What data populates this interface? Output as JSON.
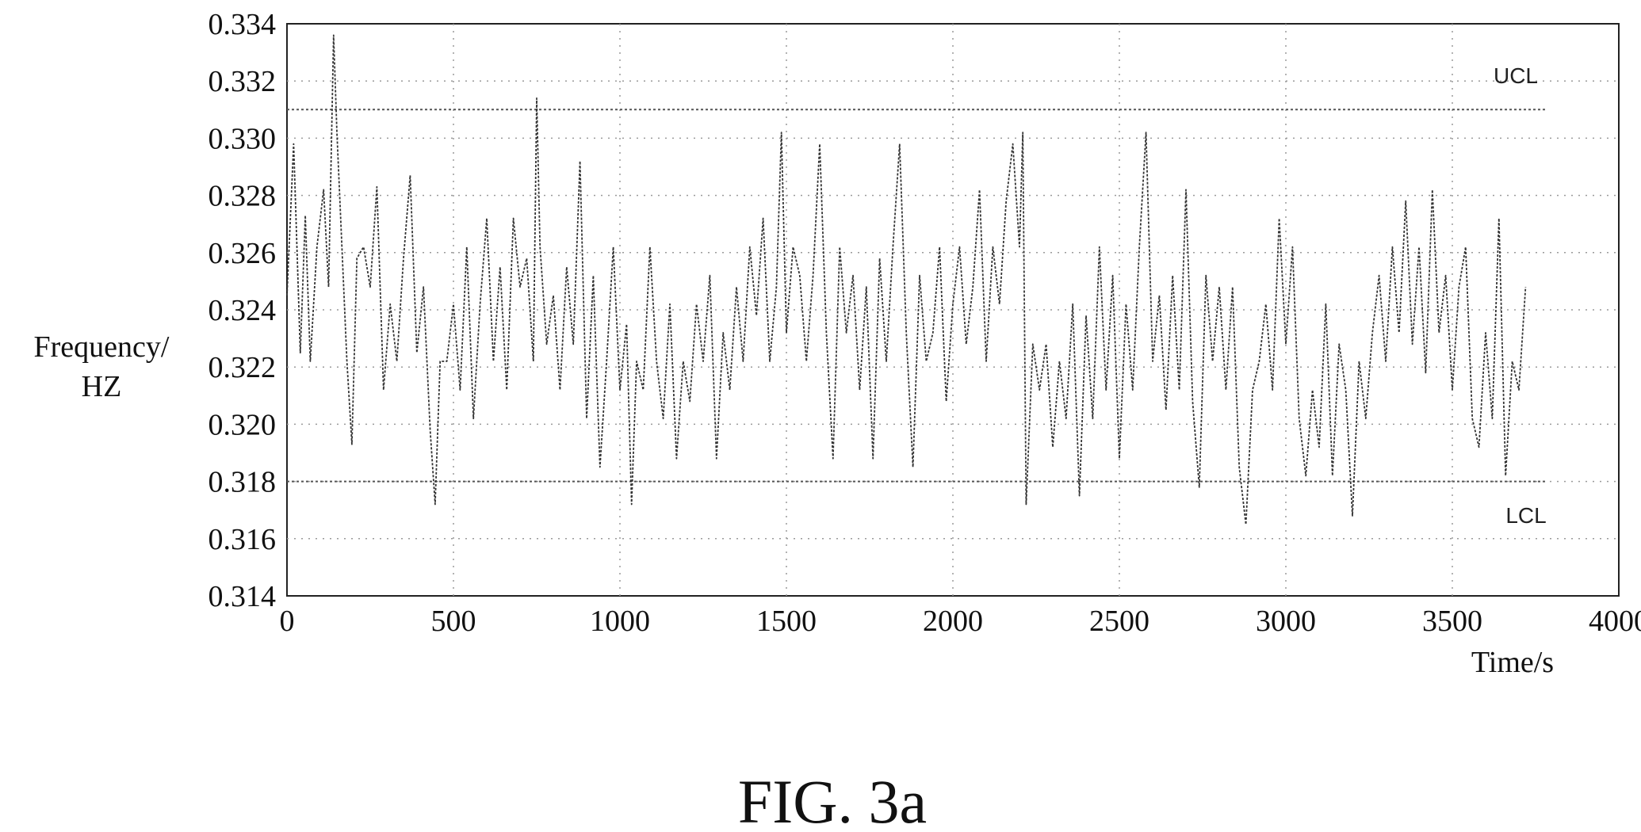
{
  "chart_data": {
    "type": "line",
    "title": "",
    "xlabel": "Time/s",
    "ylabel": "Frequency/\nHZ",
    "ylabel_lines": [
      "Frequency/",
      "HZ"
    ],
    "xlim": [
      0,
      4000
    ],
    "ylim": [
      0.314,
      0.334
    ],
    "x_ticks": [
      0,
      500,
      1000,
      1500,
      2000,
      2500,
      3000,
      3500,
      4000
    ],
    "x_tick_labels": [
      "0",
      "500",
      "1000",
      "1500",
      "2000",
      "2500",
      "3000",
      "3500",
      "4000"
    ],
    "y_ticks": [
      0.314,
      0.316,
      0.318,
      0.32,
      0.322,
      0.324,
      0.326,
      0.328,
      0.33,
      0.332,
      0.334
    ],
    "y_tick_labels": [
      "0.314",
      "0.316",
      "0.318",
      "0.320",
      "0.322",
      "0.324",
      "0.326",
      "0.328",
      "0.330",
      "0.332",
      "0.334"
    ],
    "grid": true,
    "control_limits": [
      {
        "label": "UCL",
        "value": 0.331,
        "x_end": 3780
      },
      {
        "label": "LCL",
        "value": 0.318,
        "x_end": 3780
      }
    ],
    "series": [
      {
        "x": [
          0,
          20,
          40,
          55,
          70,
          90,
          110,
          125,
          140,
          150,
          165,
          180,
          195,
          210,
          230,
          250,
          270,
          290,
          310,
          330,
          350,
          370,
          390,
          410,
          430,
          445,
          460,
          480,
          500,
          520,
          540,
          560,
          580,
          600,
          620,
          640,
          660,
          680,
          700,
          720,
          740,
          750,
          760,
          780,
          800,
          820,
          840,
          860,
          880,
          900,
          920,
          940,
          960,
          980,
          1000,
          1020,
          1035,
          1050,
          1070,
          1090,
          1110,
          1130,
          1150,
          1170,
          1190,
          1210,
          1230,
          1250,
          1270,
          1290,
          1310,
          1330,
          1350,
          1370,
          1390,
          1410,
          1430,
          1450,
          1470,
          1485,
          1500,
          1520,
          1540,
          1560,
          1580,
          1600,
          1620,
          1640,
          1660,
          1680,
          1700,
          1720,
          1740,
          1760,
          1780,
          1800,
          1820,
          1840,
          1860,
          1880,
          1900,
          1920,
          1940,
          1960,
          1980,
          2000,
          2020,
          2040,
          2060,
          2080,
          2100,
          2120,
          2140,
          2160,
          2180,
          2200,
          2210,
          2220,
          2240,
          2260,
          2280,
          2300,
          2320,
          2340,
          2360,
          2380,
          2400,
          2420,
          2440,
          2460,
          2480,
          2500,
          2520,
          2540,
          2560,
          2580,
          2600,
          2620,
          2640,
          2660,
          2680,
          2700,
          2720,
          2740,
          2760,
          2780,
          2800,
          2820,
          2840,
          2860,
          2880,
          2900,
          2920,
          2940,
          2960,
          2980,
          3000,
          3020,
          3040,
          3060,
          3080,
          3100,
          3120,
          3140,
          3160,
          3180,
          3200,
          3220,
          3240,
          3260,
          3280,
          3300,
          3320,
          3340,
          3360,
          3380,
          3400,
          3420,
          3440,
          3460,
          3480,
          3500,
          3520,
          3540,
          3560,
          3580,
          3600,
          3620,
          3640,
          3660,
          3680,
          3700,
          3720
        ],
        "y": [
          0.3245,
          0.3298,
          0.3225,
          0.3273,
          0.3222,
          0.3262,
          0.3282,
          0.3248,
          0.3336,
          0.3302,
          0.3262,
          0.3222,
          0.3193,
          0.3258,
          0.3262,
          0.3248,
          0.3283,
          0.3212,
          0.3242,
          0.3222,
          0.3258,
          0.3287,
          0.3225,
          0.3248,
          0.3198,
          0.3172,
          0.3222,
          0.3222,
          0.3242,
          0.3212,
          0.3262,
          0.3202,
          0.3242,
          0.3272,
          0.3222,
          0.3255,
          0.3212,
          0.3272,
          0.3248,
          0.3258,
          0.3222,
          0.3314,
          0.3262,
          0.3228,
          0.3245,
          0.3212,
          0.3255,
          0.3228,
          0.3292,
          0.3202,
          0.3252,
          0.3185,
          0.3222,
          0.3262,
          0.3212,
          0.3235,
          0.3172,
          0.3222,
          0.3212,
          0.3262,
          0.3222,
          0.3202,
          0.3242,
          0.3188,
          0.3222,
          0.3208,
          0.3242,
          0.3222,
          0.3252,
          0.3188,
          0.3232,
          0.3212,
          0.3248,
          0.3222,
          0.3262,
          0.3238,
          0.3272,
          0.3222,
          0.3248,
          0.3302,
          0.3232,
          0.3262,
          0.3252,
          0.3222,
          0.3252,
          0.3298,
          0.3232,
          0.3188,
          0.3262,
          0.3232,
          0.3252,
          0.3212,
          0.3248,
          0.3188,
          0.3258,
          0.3222,
          0.3262,
          0.3298,
          0.3232,
          0.3185,
          0.3252,
          0.3222,
          0.3232,
          0.3262,
          0.3208,
          0.3242,
          0.3262,
          0.3228,
          0.3248,
          0.3282,
          0.3222,
          0.3262,
          0.3242,
          0.3278,
          0.3298,
          0.3262,
          0.3302,
          0.3172,
          0.3228,
          0.3212,
          0.3228,
          0.3192,
          0.3222,
          0.3202,
          0.3242,
          0.3175,
          0.3238,
          0.3202,
          0.3262,
          0.3212,
          0.3252,
          0.3188,
          0.3242,
          0.3212,
          0.3262,
          0.3302,
          0.3222,
          0.3245,
          0.3205,
          0.3252,
          0.3212,
          0.3282,
          0.3208,
          0.3178,
          0.3252,
          0.3222,
          0.3248,
          0.3212,
          0.3248,
          0.3185,
          0.3165,
          0.3212,
          0.3222,
          0.3242,
          0.3212,
          0.3272,
          0.3228,
          0.3262,
          0.3202,
          0.3182,
          0.3212,
          0.3192,
          0.3242,
          0.3182,
          0.3228,
          0.3212,
          0.3168,
          0.3222,
          0.3202,
          0.3232,
          0.3252,
          0.3222,
          0.3262,
          0.3232,
          0.3278,
          0.3228,
          0.3262,
          0.3218,
          0.3282,
          0.3232,
          0.3252,
          0.3212,
          0.3248,
          0.3262,
          0.3202,
          0.3192,
          0.3232,
          0.3202,
          0.3272,
          0.3182,
          0.3222,
          0.3212,
          0.3248
        ]
      }
    ]
  },
  "caption": "FIG. 3a"
}
